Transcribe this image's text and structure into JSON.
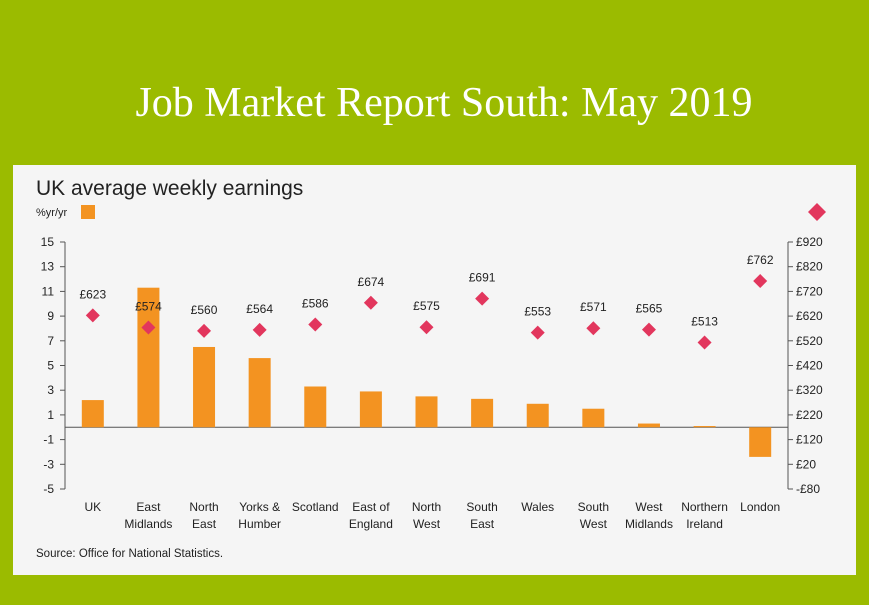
{
  "slide_title": "Job Market Report South: May 2019",
  "chart_data": {
    "type": "bar",
    "title": "UK average weekly earnings",
    "y_label": "%yr/yr",
    "source": "Source: Office for National Statistics.",
    "categories": [
      "UK",
      "East Midlands",
      "North East",
      "Yorks & Humber",
      "Scotland",
      "East of England",
      "North West",
      "South East",
      "Wales",
      "South West",
      "West Midlands",
      "Northern Ireland",
      "London"
    ],
    "series": [
      {
        "name": "%yr/yr",
        "type": "bar",
        "color": "#f39321",
        "values": [
          2.2,
          11.3,
          6.5,
          5.6,
          3.3,
          2.9,
          2.5,
          2.3,
          1.9,
          1.5,
          0.3,
          0.1,
          -2.4
        ]
      },
      {
        "type": "scatter",
        "axis": "y2",
        "color": "#e2365d",
        "values": [
          623,
          574,
          560,
          564,
          586,
          674,
          575,
          691,
          553,
          571,
          565,
          513,
          762
        ],
        "value_labels": [
          "£623",
          "£574",
          "£560",
          "£564",
          "£586",
          "£674",
          "£575",
          "£691",
          "£553",
          "£571",
          "£565",
          "£513",
          "£762"
        ]
      }
    ],
    "ylim": [
      -5,
      15
    ],
    "yticks": [
      15,
      13,
      11,
      9,
      7,
      5,
      3,
      1,
      -1,
      -3,
      -5
    ],
    "y2lim": [
      -80,
      920
    ],
    "y2ticks": [
      {
        "value": 920,
        "label": "£920"
      },
      {
        "value": 820,
        "label": "£820"
      },
      {
        "value": 720,
        "label": "£720"
      },
      {
        "value": 620,
        "label": "£620"
      },
      {
        "value": 520,
        "label": "£520"
      },
      {
        "value": 420,
        "label": "£420"
      },
      {
        "value": 320,
        "label": "£320"
      },
      {
        "value": 220,
        "label": "£220"
      },
      {
        "value": 120,
        "label": "£120"
      },
      {
        "value": 20,
        "label": "£20"
      },
      {
        "value": -80,
        "label": "-£80"
      }
    ]
  }
}
